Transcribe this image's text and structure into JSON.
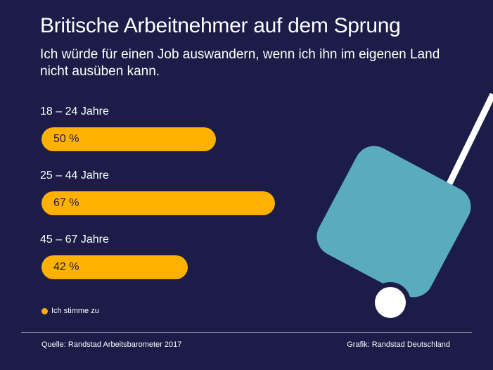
{
  "header": {
    "title": "Britische Arbeitnehmer auf dem Sprung",
    "subtitle": "Ich würde für einen Job auswandern, wenn ich ihn im eigenen Land nicht ausüben kann."
  },
  "chart_data": {
    "type": "bar",
    "orientation": "horizontal",
    "title": "Britische Arbeitnehmer auf dem Sprung",
    "subtitle": "Ich würde für einen Job auswandern, wenn ich ihn im eigenen Land nicht ausüben kann.",
    "categories": [
      "18 – 24 Jahre",
      "25 – 44 Jahre",
      "45 – 67 Jahre"
    ],
    "series": [
      {
        "name": "Ich stimme zu",
        "values": [
          50,
          67,
          42
        ],
        "labels": [
          "50 %",
          "67 %",
          "42 %"
        ],
        "color": "#ffb100"
      }
    ],
    "xlim": [
      0,
      100
    ],
    "grid": false,
    "legend": "bottom-left"
  },
  "legend": {
    "label": "Ich stimme zu"
  },
  "footer": {
    "source": "Quelle: Randstad Arbeitsbarometer 2017",
    "credit": "Grafik: Randstad Deutschland"
  },
  "illustration": {
    "icon": "suitcase-icon",
    "color": "#5aacbd",
    "handle_color": "#ffffff",
    "wheel_color": "#ffffff"
  },
  "colors": {
    "background": "#1b1c47",
    "bar": "#ffb100",
    "text": "#ffffff"
  }
}
